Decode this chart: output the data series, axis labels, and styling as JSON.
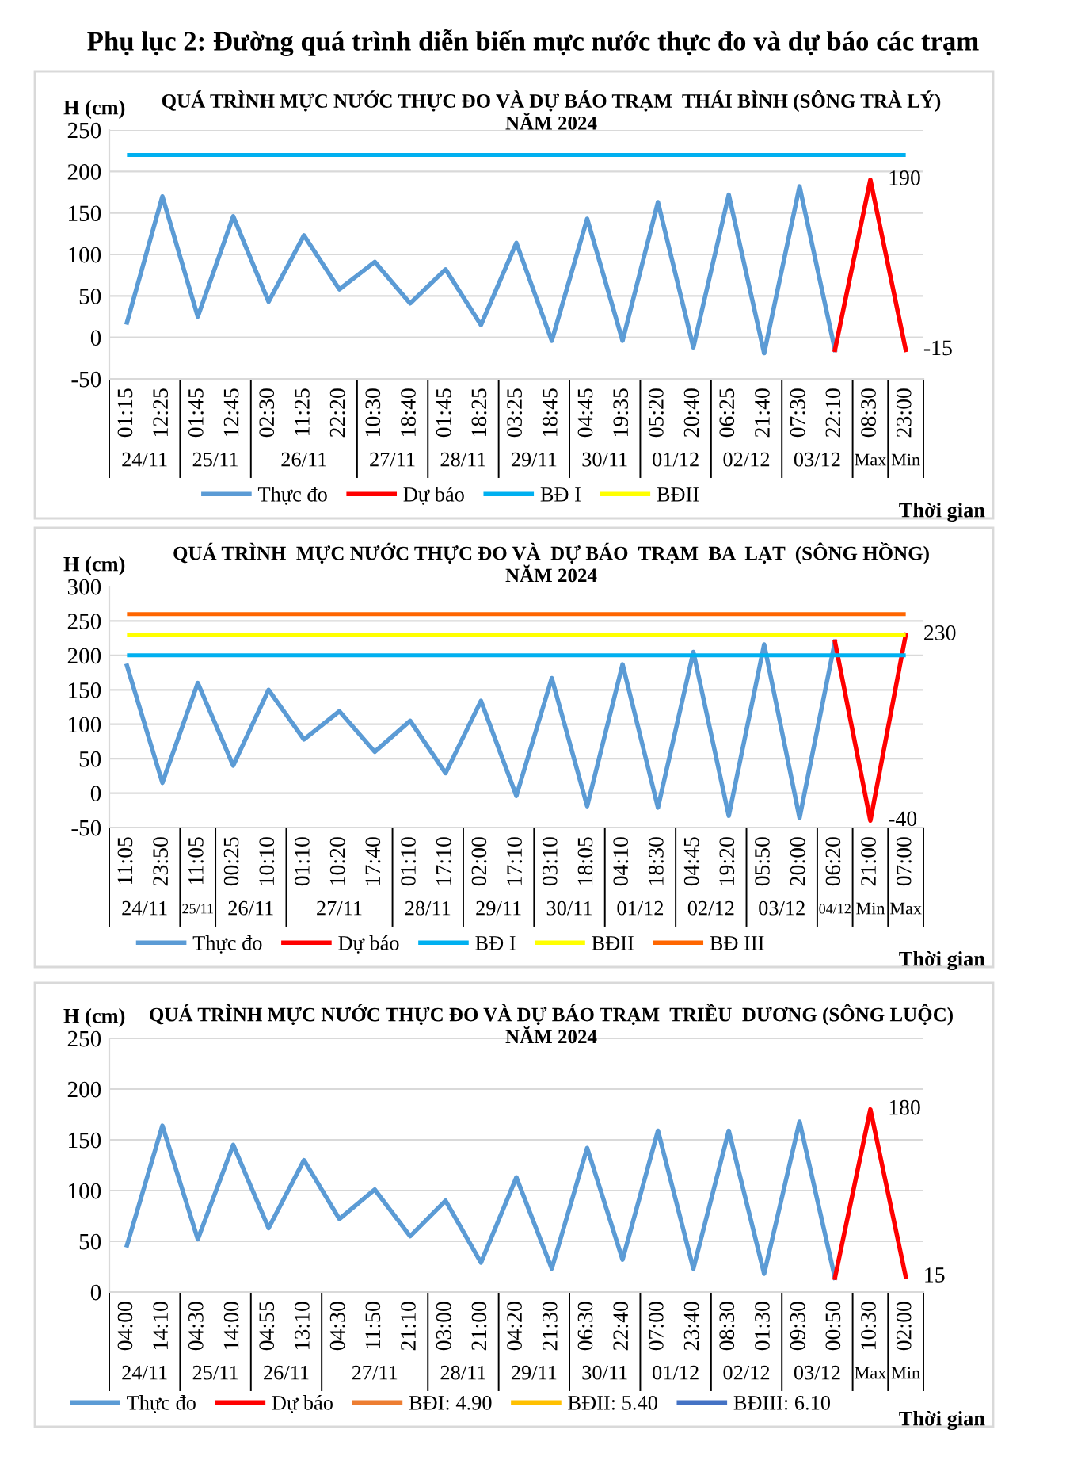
{
  "chart_data": [
    {
      "type": "line",
      "title": "QUÁ TRÌNH MỰC NƯỚC THỰC ĐO VÀ DỰ BÁO TRẠM  THÁI BÌNH (SÔNG TRÀ LÝ)\nNĂM 2024",
      "ylabel": "H (cm)",
      "xlabel": "Thời gian",
      "categories": [
        "01:15",
        "12:25",
        "01:45",
        "12:45",
        "02:30",
        "11:25",
        "22:20",
        "10:30",
        "18:40",
        "01:45",
        "18:25",
        "03:25",
        "18:45",
        "04:45",
        "19:35",
        "05:20",
        "20:40",
        "06:25",
        "21:40",
        "07:30",
        "22:10",
        "08:30",
        "23:00"
      ],
      "series": [
        {
          "name": "Thực đo",
          "color": "#5b9bd5",
          "values": [
            18,
            170,
            25,
            146,
            43,
            123,
            58,
            91,
            41,
            82,
            15,
            114,
            -4,
            143,
            -4,
            163,
            -12,
            172,
            -19,
            182,
            -15,
            null,
            null
          ]
        },
        {
          "name": "Dự báo",
          "color": "#ff0000",
          "values": [
            null,
            null,
            null,
            null,
            null,
            null,
            null,
            null,
            null,
            null,
            null,
            null,
            null,
            null,
            null,
            null,
            null,
            null,
            null,
            null,
            -15,
            190,
            -15
          ],
          "value_labels": [
            null,
            null,
            null,
            null,
            null,
            null,
            null,
            null,
            null,
            null,
            null,
            null,
            null,
            null,
            null,
            null,
            null,
            null,
            null,
            null,
            null,
            "190",
            "-15"
          ]
        },
        {
          "name": "BĐII",
          "color": "#ffff00",
          "values": [
            null,
            null,
            null,
            null,
            null,
            null,
            null,
            null,
            null,
            null,
            null,
            null,
            null,
            null,
            null,
            null,
            null,
            null,
            null,
            null,
            null,
            null,
            null
          ]
        }
      ],
      "ref_lines": [
        {
          "axis": "y",
          "value": 220,
          "label": "BĐ I",
          "color": "#00b0f0"
        }
      ],
      "annotations": [
        "Phụ lục 2: Đường quá trình diễn biến mực nước thực đo và dự báo các trạm",
        "24/11",
        "25/11",
        "26/11",
        "27/11",
        "28/11",
        "29/11",
        "30/11",
        "01/12",
        "02/12",
        "03/12",
        "Max",
        "Min"
      ],
      "ylim": [
        -50,
        250
      ],
      "yticks": [
        -50,
        0,
        50,
        100,
        150,
        200,
        250
      ],
      "grid": "y",
      "legend": "bottom",
      "marker": "none",
      "line_style": "solid"
    },
    {
      "type": "line",
      "title": "QUÁ TRÌNH  MỰC NƯỚC THỰC ĐO VÀ  DỰ BÁO  TRẠM  BA  LẠT  (SÔNG HỒNG)\nNĂM 2024",
      "ylabel": "H (cm)",
      "xlabel": "Thời gian",
      "categories": [
        "11:05",
        "23:50",
        "11:05",
        "00:25",
        "10:10",
        "01:10",
        "10:20",
        "17:40",
        "01:10",
        "17:10",
        "02:00",
        "17:10",
        "03:10",
        "18:05",
        "04:10",
        "18:30",
        "04:45",
        "19:20",
        "05:50",
        "20:00",
        "06:20",
        "21:00",
        "07:00"
      ],
      "series": [
        {
          "name": "Thực đo",
          "color": "#5b9bd5",
          "values": [
            185,
            15,
            160,
            40,
            150,
            78,
            119,
            60,
            105,
            29,
            134,
            -4,
            167,
            -19,
            187,
            -21,
            205,
            -33,
            216,
            -36,
            220,
            null,
            null
          ]
        },
        {
          "name": "Dự báo",
          "color": "#ff0000",
          "values": [
            null,
            null,
            null,
            null,
            null,
            null,
            null,
            null,
            null,
            null,
            null,
            null,
            null,
            null,
            null,
            null,
            null,
            null,
            null,
            null,
            220,
            -40,
            230
          ],
          "value_labels": [
            null,
            null,
            null,
            null,
            null,
            null,
            null,
            null,
            null,
            null,
            null,
            null,
            null,
            null,
            null,
            null,
            null,
            null,
            null,
            null,
            null,
            "-40",
            "230"
          ]
        }
      ],
      "ref_lines": [
        {
          "axis": "y",
          "value": 200,
          "label": "BĐ I",
          "color": "#00b0f0"
        },
        {
          "axis": "y",
          "value": 230,
          "label": "BĐII",
          "color": "#ffff00"
        },
        {
          "axis": "y",
          "value": 260,
          "label": "BĐ III",
          "color": "#ff6600"
        }
      ],
      "annotations": [
        "24/11",
        "25/11",
        "26/11",
        "27/11",
        "28/11",
        "29/11",
        "30/11",
        "01/12",
        "02/12",
        "03/12",
        "04/12",
        "Min",
        "Max"
      ],
      "ylim": [
        -50,
        300
      ],
      "yticks": [
        -50,
        0,
        50,
        100,
        150,
        200,
        250,
        300
      ],
      "grid": "y",
      "legend": "bottom",
      "marker": "none",
      "line_style": "solid"
    },
    {
      "type": "line",
      "title": "QUÁ TRÌNH MỰC NƯỚC THỰC ĐO VÀ DỰ BÁO TRẠM  TRIỀU  DƯƠNG (SÔNG LUỘC)\nNĂM 2024",
      "ylabel": "H (cm)",
      "xlabel": "Thời gian",
      "categories": [
        "04:00",
        "14:10",
        "04:30",
        "14:00",
        "04:55",
        "13:10",
        "04:30",
        "11:50",
        "21:10",
        "03:00",
        "21:00",
        "04:20",
        "21:30",
        "06:30",
        "22:40",
        "07:00",
        "23:40",
        "08:30",
        "01:30",
        "09:30",
        "00:50",
        "10:30",
        "02:00"
      ],
      "series": [
        {
          "name": "Thực đo",
          "color": "#5b9bd5",
          "values": [
            46,
            164,
            52,
            145,
            63,
            130,
            72,
            101,
            55,
            90,
            29,
            113,
            23,
            142,
            32,
            159,
            23,
            159,
            18,
            168,
            14,
            null,
            null
          ]
        },
        {
          "name": "Dự báo",
          "color": "#ff0000",
          "values": [
            null,
            null,
            null,
            null,
            null,
            null,
            null,
            null,
            null,
            null,
            null,
            null,
            null,
            null,
            null,
            null,
            null,
            null,
            null,
            null,
            14,
            180,
            15
          ],
          "value_labels": [
            null,
            null,
            null,
            null,
            null,
            null,
            null,
            null,
            null,
            null,
            null,
            null,
            null,
            null,
            null,
            null,
            null,
            null,
            null,
            null,
            null,
            "180",
            "15"
          ]
        },
        {
          "name": "BĐI: 4.90",
          "color": "#ed7d31",
          "values": [
            null,
            null,
            null,
            null,
            null,
            null,
            null,
            null,
            null,
            null,
            null,
            null,
            null,
            null,
            null,
            null,
            null,
            null,
            null,
            null,
            null,
            null,
            null
          ]
        },
        {
          "name": "BĐII: 5.40",
          "color": "#ffc000",
          "values": [
            null,
            null,
            null,
            null,
            null,
            null,
            null,
            null,
            null,
            null,
            null,
            null,
            null,
            null,
            null,
            null,
            null,
            null,
            null,
            null,
            null,
            null,
            null
          ]
        },
        {
          "name": "BĐIII: 6.10",
          "color": "#4472c4",
          "values": [
            null,
            null,
            null,
            null,
            null,
            null,
            null,
            null,
            null,
            null,
            null,
            null,
            null,
            null,
            null,
            null,
            null,
            null,
            null,
            null,
            null,
            null,
            null
          ]
        }
      ],
      "annotations": [
        "24/11",
        "25/11",
        "26/11",
        "27/11",
        "28/11",
        "29/11",
        "30/11",
        "01/12",
        "02/12",
        "03/12",
        "Max",
        "Min"
      ],
      "ylim": [
        0,
        250
      ],
      "yticks": [
        0,
        50,
        100,
        150,
        200,
        250
      ],
      "grid": "y",
      "legend": "bottom",
      "marker": "none",
      "line_style": "solid"
    }
  ]
}
